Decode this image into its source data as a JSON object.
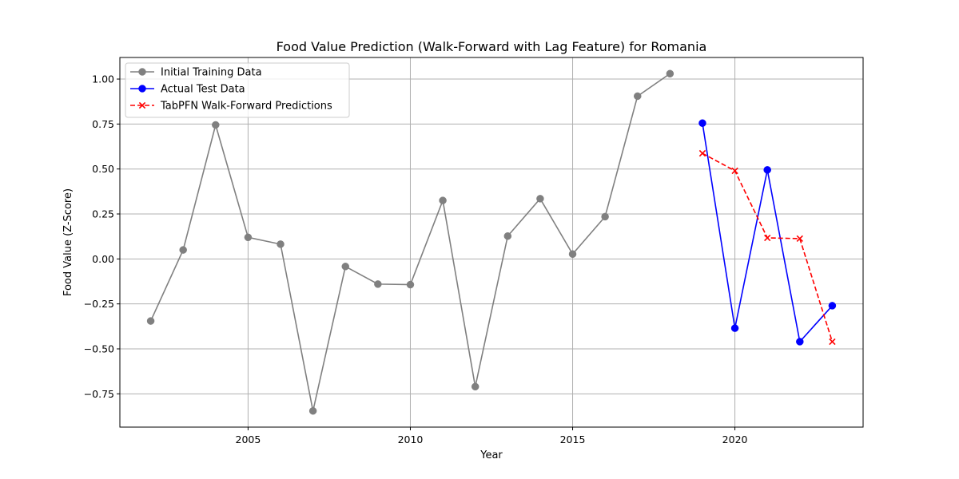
{
  "chart_data": {
    "type": "line",
    "title": "Food Value Prediction (Walk-Forward with Lag Feature) for Romania",
    "xlabel": "Year",
    "ylabel": "Food Value (Z-Score)",
    "xlim": [
      2001.05,
      2023.95
    ],
    "ylim": [
      -0.935,
      1.12
    ],
    "xticks": [
      2005,
      2010,
      2015,
      2020
    ],
    "xtick_labels": [
      "2005",
      "2010",
      "2015",
      "2020"
    ],
    "yticks": [
      -0.75,
      -0.5,
      -0.25,
      0.0,
      0.25,
      0.5,
      0.75,
      1.0
    ],
    "ytick_labels": [
      "−0.75",
      "−0.50",
      "−0.25",
      "0.00",
      "0.25",
      "0.50",
      "0.75",
      "1.00"
    ],
    "grid": true,
    "legend_position": "top-left",
    "series": [
      {
        "name": "Initial Training Data",
        "color": "#808080",
        "marker": "circle",
        "linestyle": "solid",
        "x": [
          2002,
          2003,
          2004,
          2005,
          2006,
          2007,
          2008,
          2009,
          2010,
          2011,
          2012,
          2013,
          2014,
          2015,
          2016,
          2017,
          2018
        ],
        "y": [
          -0.345,
          0.05,
          0.745,
          0.12,
          0.082,
          -0.845,
          -0.042,
          -0.14,
          -0.143,
          0.325,
          -0.71,
          0.127,
          0.335,
          0.027,
          0.235,
          0.905,
          1.03
        ]
      },
      {
        "name": "Actual Test Data",
        "color": "#0000ff",
        "marker": "circle",
        "linestyle": "solid",
        "x": [
          2019,
          2020,
          2021,
          2022,
          2023
        ],
        "y": [
          0.755,
          -0.385,
          0.495,
          -0.46,
          -0.26
        ]
      },
      {
        "name": "TabPFN Walk-Forward Predictions",
        "color": "#ff0000",
        "marker": "x",
        "linestyle": "dashed",
        "x": [
          2019,
          2020,
          2021,
          2022,
          2023
        ],
        "y": [
          0.587,
          0.49,
          0.117,
          0.113,
          -0.46
        ]
      }
    ]
  }
}
